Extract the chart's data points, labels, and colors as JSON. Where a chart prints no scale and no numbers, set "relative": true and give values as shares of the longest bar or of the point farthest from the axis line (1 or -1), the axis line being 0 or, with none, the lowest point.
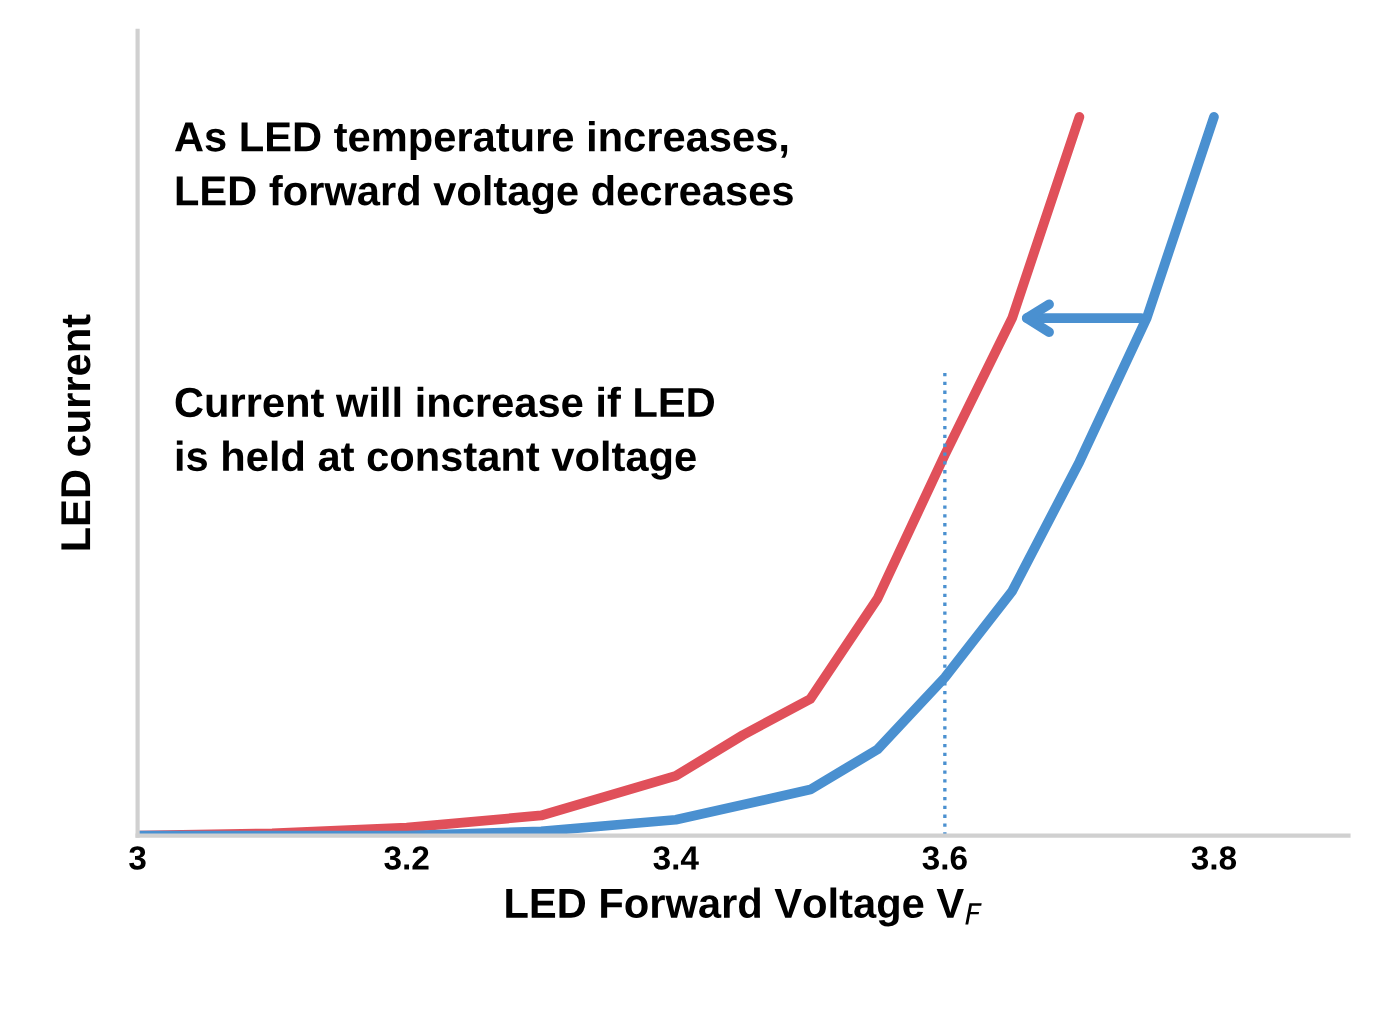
{
  "chart_data": {
    "type": "line",
    "relative": true,
    "xlabel": "LED Forward Voltage V$_{F}$",
    "ylabel": "LED current",
    "xlim": [
      3,
      3.9
    ],
    "xticks": [
      3,
      3.2,
      3.4,
      3.6,
      3.8
    ],
    "tick_labels": "x",
    "grid": false,
    "marker": "none",
    "line_style": "solid",
    "series": [
      {
        "color": "#e0505a",
        "x": [
          3.0,
          3.1,
          3.2,
          3.3,
          3.4,
          3.45,
          3.5,
          3.55,
          3.6,
          3.65,
          3.7
        ],
        "values": [
          0,
          0.003,
          0.011,
          0.028,
          0.083,
          0.14,
          0.19,
          0.33,
          0.53,
          0.72,
          1.0
        ]
      },
      {
        "color": "#4a90d0",
        "x": [
          3.0,
          3.2,
          3.3,
          3.4,
          3.5,
          3.55,
          3.6,
          3.65,
          3.7,
          3.75,
          3.8
        ],
        "values": [
          0,
          0,
          0.006,
          0.022,
          0.064,
          0.12,
          0.22,
          0.34,
          0.52,
          0.72,
          1.0
        ]
      }
    ],
    "ref_lines": [
      {
        "axis": "x",
        "value": 3.6,
        "color": "#4a90d0",
        "line_style": "dotted"
      }
    ],
    "annotations": [
      "As LED temperature increases,\nLED forward voltage decreases",
      "Current will increase if LED\nis held at constant voltage"
    ]
  }
}
